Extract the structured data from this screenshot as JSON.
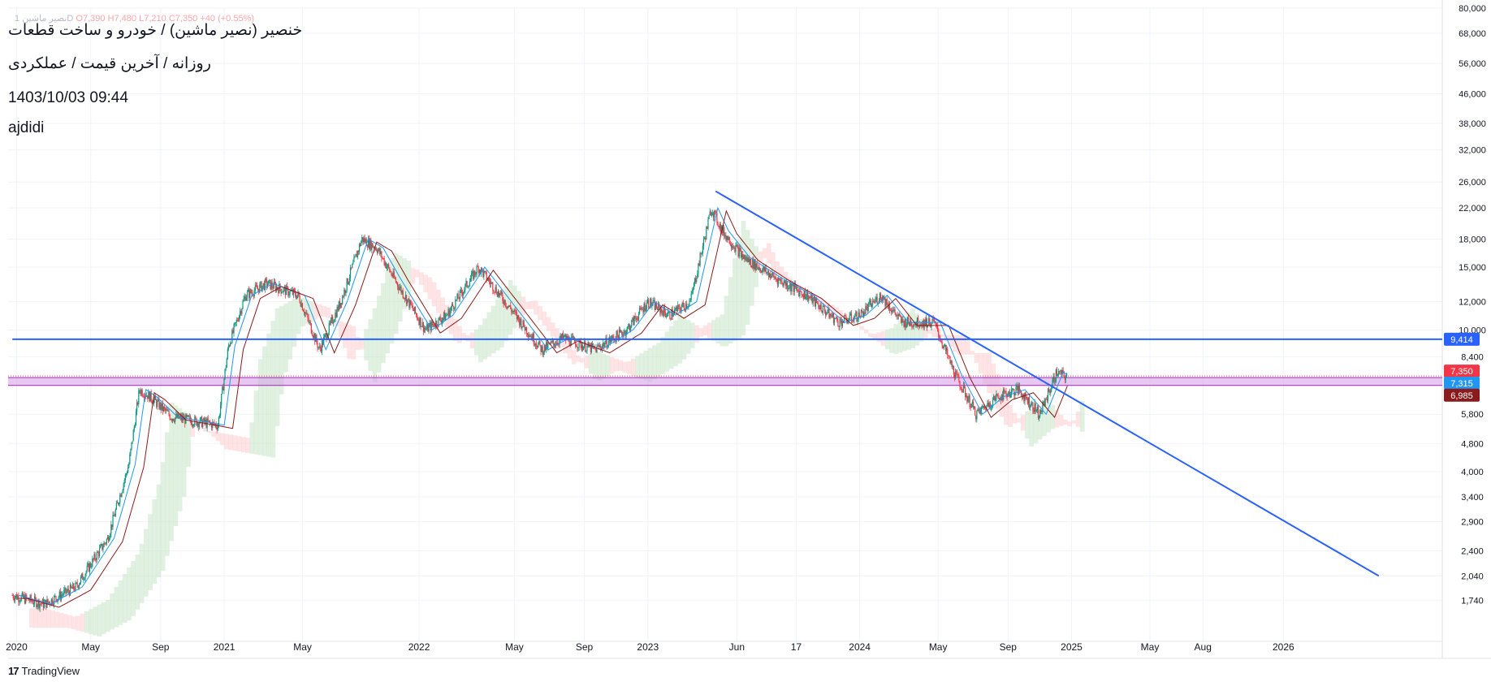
{
  "header": {
    "ohlc_prefix": "1 نصیر ماشینD",
    "open": "O7,390",
    "high": "H7,480",
    "low": "L7,210",
    "close": "C7,350",
    "change": "+40 (+0.55%)",
    "title": "خنصیر (نصیر ماشین) / خودرو و ساخت قطعات",
    "subtitle": "روزانه / آخرین قیمت / عملکردی",
    "timestamp": "1403/10/03 09:44",
    "author": "ajdidi"
  },
  "price_badges": [
    {
      "label": "9,414",
      "color": "#2962ff"
    },
    {
      "label": "7,350",
      "color": "#f23645"
    },
    {
      "label": "7,315",
      "color": "#2196f3"
    },
    {
      "label": "6,985",
      "color": "#8b1a1a"
    }
  ],
  "footer": {
    "brand": "TradingView"
  },
  "colors": {
    "candle_up": "#089981",
    "candle_down": "#f23645",
    "trendline": "#2962ff",
    "horizontal_line": "#2962ff",
    "zone_fill": "#d59be8",
    "zone_border": "#9c27b0",
    "kijun": "#8b1a1a",
    "tenkan": "#2196f3",
    "cloud_bull": "#c8e6c9",
    "cloud_bear": "#ffcdd2"
  },
  "chart_data": {
    "type": "line",
    "scale": "log",
    "title": "خنصیر (نصیر ماشین) / خودرو و ساخت قطعات",
    "xlabel": "",
    "ylabel": "",
    "ylim": [
      1500,
      80000
    ],
    "grid": true,
    "y_ticks": [
      "80,000",
      "68,000",
      "56,000",
      "46,000",
      "38,000",
      "32,000",
      "26,000",
      "22,000",
      "18,000",
      "15,000",
      "12,000",
      "10,000",
      "8,400",
      "5,800",
      "4,800",
      "4,000",
      "3,400",
      "2,900",
      "2,400",
      "2,040",
      "1,740"
    ],
    "x_ticks": [
      "2020",
      "May",
      "Sep",
      "2021",
      "May",
      "2022",
      "May",
      "Sep",
      "2023",
      "Jun",
      "17",
      "2024",
      "May",
      "Sep",
      "2025",
      "May",
      "Aug",
      "2026"
    ],
    "series": [
      {
        "values": [
          [
            2020.0,
            1800
          ],
          [
            2020.15,
            1700
          ],
          [
            2020.3,
            1900
          ],
          [
            2020.45,
            2600
          ],
          [
            2020.55,
            4200
          ],
          [
            2020.6,
            6800
          ],
          [
            2020.65,
            6500
          ],
          [
            2020.75,
            5700
          ],
          [
            2020.9,
            5500
          ],
          [
            2020.97,
            5400
          ],
          [
            2021.02,
            9000
          ],
          [
            2021.1,
            12500
          ],
          [
            2021.2,
            13500
          ],
          [
            2021.35,
            12500
          ],
          [
            2021.45,
            8800
          ],
          [
            2021.55,
            12000
          ],
          [
            2021.65,
            18000
          ],
          [
            2021.72,
            17000
          ],
          [
            2021.8,
            14000
          ],
          [
            2021.95,
            10000
          ],
          [
            2022.05,
            11000
          ],
          [
            2022.2,
            15000
          ],
          [
            2022.35,
            11500
          ],
          [
            2022.5,
            8800
          ],
          [
            2022.6,
            9500
          ],
          [
            2022.75,
            8800
          ],
          [
            2022.9,
            10000
          ],
          [
            2023.0,
            12000
          ],
          [
            2023.1,
            11000
          ],
          [
            2023.2,
            12000
          ],
          [
            2023.3,
            22000
          ],
          [
            2023.35,
            19000
          ],
          [
            2023.45,
            16000
          ],
          [
            2023.6,
            14000
          ],
          [
            2023.75,
            12500
          ],
          [
            2023.9,
            10500
          ],
          [
            2024.0,
            11000
          ],
          [
            2024.1,
            12500
          ],
          [
            2024.2,
            10500
          ],
          [
            2024.35,
            10500
          ],
          [
            2024.45,
            7500
          ],
          [
            2024.55,
            5800
          ],
          [
            2024.65,
            6500
          ],
          [
            2024.75,
            6800
          ],
          [
            2024.85,
            5800
          ],
          [
            2024.93,
            7600
          ],
          [
            2024.98,
            7350
          ]
        ]
      },
      {
        "values": [
          [
            2023.32,
            24500
          ],
          [
            2026.45,
            2040
          ]
        ]
      },
      {
        "values": [
          [
            2020.0,
            9414
          ],
          [
            2026.7,
            9414
          ]
        ]
      }
    ],
    "annotations": [
      {
        "type": "zone",
        "from": 6985,
        "to": 7350
      },
      {
        "type": "hline",
        "value": 9414
      }
    ]
  }
}
